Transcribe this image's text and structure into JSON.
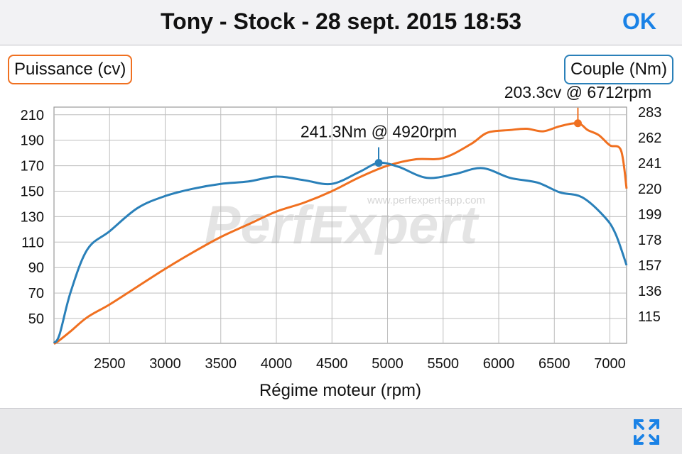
{
  "header": {
    "title": "Tony - Stock - 28 sept. 2015 18:53",
    "ok_label": "OK"
  },
  "legend": {
    "left_label": "Puissance (cv)",
    "right_label": "Couple (Nm)"
  },
  "watermark": {
    "logo_text": "PerfExpert",
    "url": "www.perfexpert-app.com"
  },
  "colors": {
    "power": "#f07020",
    "torque": "#2a80b9",
    "accent": "#1a82e6"
  },
  "icons": {
    "fullscreen": "expand-arrows-icon"
  },
  "chart_data": {
    "type": "line",
    "xlabel": "Régime moteur (rpm)",
    "x_ticks": [
      2500,
      3000,
      3500,
      4000,
      4500,
      5000,
      5500,
      6000,
      6500,
      7000
    ],
    "xlim": [
      2000,
      7150
    ],
    "y_left": {
      "label": "Puissance (cv)",
      "ticks": [
        50,
        70,
        90,
        110,
        130,
        150,
        170,
        190,
        210
      ],
      "ylim": [
        30.5,
        216
      ]
    },
    "y_right": {
      "label": "Couple (Nm)",
      "ticks": [
        115,
        136,
        157,
        178,
        199,
        220,
        241,
        262,
        283
      ],
      "ylim": [
        92.7,
        287.2
      ]
    },
    "grid": true,
    "series": [
      {
        "name": "Puissance (cv)",
        "axis": "left",
        "color": "#f07020",
        "points": [
          [
            2000,
            30
          ],
          [
            2050,
            33
          ],
          [
            2150,
            40
          ],
          [
            2300,
            51
          ],
          [
            2500,
            61
          ],
          [
            2750,
            75
          ],
          [
            3000,
            89
          ],
          [
            3250,
            102
          ],
          [
            3500,
            114
          ],
          [
            3750,
            124
          ],
          [
            4000,
            134
          ],
          [
            4250,
            141
          ],
          [
            4500,
            150
          ],
          [
            4750,
            161
          ],
          [
            5000,
            170
          ],
          [
            5250,
            175
          ],
          [
            5500,
            176
          ],
          [
            5750,
            187
          ],
          [
            5900,
            196
          ],
          [
            6100,
            198
          ],
          [
            6250,
            199
          ],
          [
            6400,
            197
          ],
          [
            6550,
            201
          ],
          [
            6712,
            203.3
          ],
          [
            6800,
            198
          ],
          [
            6900,
            194
          ],
          [
            7000,
            186
          ],
          [
            7100,
            182
          ],
          [
            7150,
            152
          ]
        ],
        "annotation": {
          "x": 6712,
          "y": 203.3,
          "text": "203.3cv @ 6712rpm"
        }
      },
      {
        "name": "Couple (Nm)",
        "axis": "right",
        "color": "#2a80b9",
        "points": [
          [
            2000,
            93
          ],
          [
            2050,
            100
          ],
          [
            2150,
            135
          ],
          [
            2300,
            170
          ],
          [
            2500,
            185
          ],
          [
            2750,
            204
          ],
          [
            3000,
            214
          ],
          [
            3250,
            220
          ],
          [
            3500,
            224
          ],
          [
            3750,
            226
          ],
          [
            4000,
            230
          ],
          [
            4250,
            227
          ],
          [
            4500,
            224
          ],
          [
            4750,
            234
          ],
          [
            4920,
            241.3
          ],
          [
            5100,
            238
          ],
          [
            5350,
            229
          ],
          [
            5600,
            232
          ],
          [
            5850,
            237
          ],
          [
            6100,
            229
          ],
          [
            6350,
            225
          ],
          [
            6550,
            217
          ],
          [
            6750,
            213
          ],
          [
            6950,
            197
          ],
          [
            7050,
            183
          ],
          [
            7150,
            157
          ]
        ],
        "annotation": {
          "x": 4920,
          "y": 241.3,
          "text": "241.3Nm @ 4920rpm"
        }
      }
    ]
  }
}
